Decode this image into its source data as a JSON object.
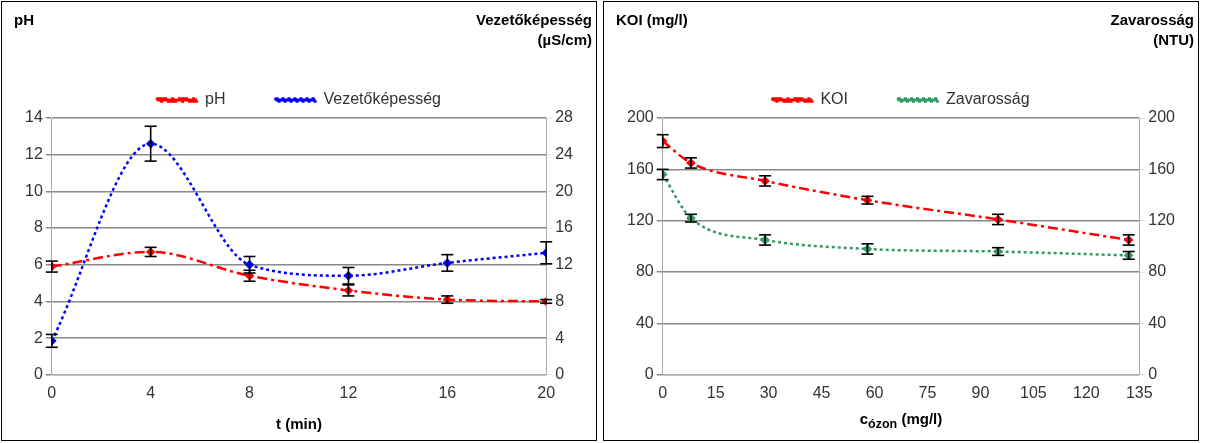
{
  "chart_data": [
    {
      "type": "line",
      "xlabel": "t (min)",
      "ylabel": "pH",
      "y2label": "Vezetőképesség (µS/cm)",
      "xlim": [
        0,
        20
      ],
      "xticks": [
        0,
        4,
        8,
        12,
        16,
        20
      ],
      "ylim": [
        0,
        14
      ],
      "yticks": [
        0,
        2,
        4,
        6,
        8,
        10,
        12,
        14
      ],
      "y2lim": [
        0,
        28
      ],
      "y2ticks": [
        0,
        4,
        8,
        12,
        16,
        20,
        24,
        28
      ],
      "grid": "y",
      "legend": "top",
      "marker": "diamond",
      "series": [
        {
          "name": "pH",
          "color": "#ff0000",
          "line_style": "dashed",
          "x": [
            0,
            4,
            8,
            12,
            16,
            20
          ],
          "values": [
            5.9,
            6.7,
            5.4,
            4.6,
            4.1,
            4.0
          ],
          "errors": [
            0.3,
            0.25,
            0.3,
            0.3,
            0.2,
            0.1
          ]
        },
        {
          "name": "Vezetőképesség",
          "color": "#0000ff",
          "line_style": "dotted",
          "axis": "y2",
          "x": [
            0,
            4,
            8,
            12,
            16,
            20
          ],
          "values": [
            3.7,
            25.2,
            12,
            10.8,
            12.2,
            13.3
          ],
          "errors": [
            0.7,
            1.9,
            0.9,
            0.9,
            0.9,
            1.2
          ]
        }
      ]
    },
    {
      "type": "line",
      "xlabel": "c$_{ózon}$ (mg/l)",
      "ylabel": "KOI (mg/l)",
      "y2label": "Zavarosság (NTU)",
      "xlim": [
        0,
        135
      ],
      "xticks": [
        0,
        15,
        30,
        45,
        60,
        75,
        90,
        105,
        120,
        135
      ],
      "ylim": [
        0,
        200
      ],
      "yticks": [
        0,
        40,
        80,
        120,
        160,
        200
      ],
      "y2lim": [
        0,
        200
      ],
      "y2ticks": [
        0,
        40,
        80,
        120,
        160,
        200
      ],
      "grid": "y",
      "legend": "top",
      "marker": "diamond",
      "series": [
        {
          "name": "KOI",
          "color": "#ff0000",
          "line_style": "dashed",
          "x": [
            0,
            8,
            29,
            58,
            95,
            132
          ],
          "values": [
            182,
            165,
            151,
            136,
            121,
            105
          ],
          "errors": [
            5,
            4,
            4,
            3,
            4,
            4
          ]
        },
        {
          "name": "Zavarosság",
          "color": "#339966",
          "line_style": "dotted",
          "axis": "y2",
          "x": [
            0,
            8,
            29,
            58,
            95,
            132
          ],
          "values": [
            156,
            122,
            105,
            98,
            96,
            93
          ],
          "errors": [
            4,
            3,
            4,
            4,
            3,
            3
          ]
        }
      ]
    }
  ]
}
